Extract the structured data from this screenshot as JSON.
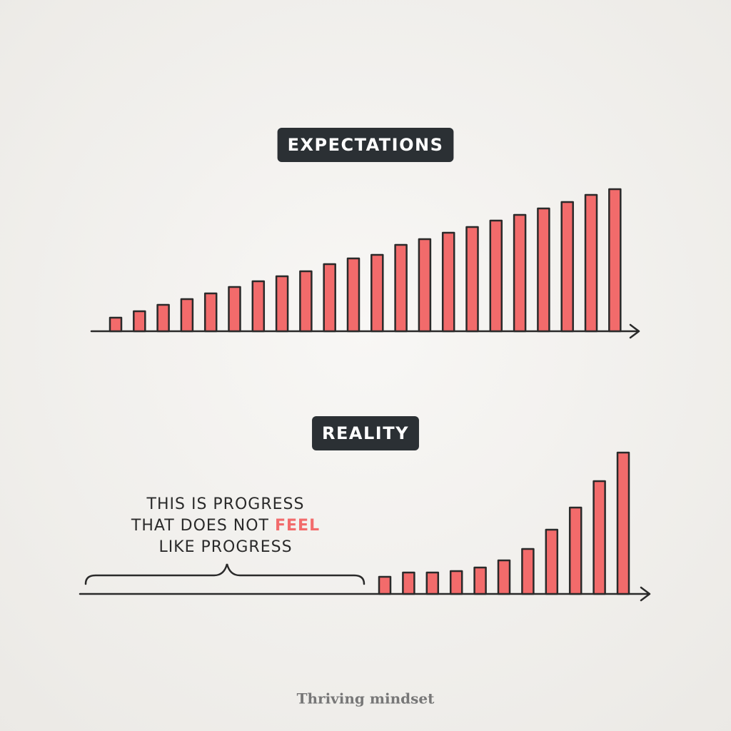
{
  "chart_data": [
    {
      "type": "bar",
      "title": "EXPECTATIONS",
      "color": "#f26b6b",
      "ylim": [
        0,
        200
      ],
      "values": [
        19,
        28,
        37,
        45,
        53,
        62,
        70,
        77,
        84,
        94,
        102,
        107,
        121,
        129,
        138,
        146,
        155,
        163,
        172,
        181,
        191,
        199
      ]
    },
    {
      "type": "bar",
      "title": "REALITY",
      "color": "#f26b6b",
      "ylim": [
        0,
        200
      ],
      "values": [
        24,
        30,
        30,
        32,
        37,
        47,
        63,
        90,
        121,
        158,
        198
      ],
      "annotation": [
        [
          "THIS IS PROGRESS"
        ],
        [
          "THAT DOES NOT ",
          "FEEL"
        ],
        [
          "LIKE PROGRESS"
        ]
      ]
    }
  ],
  "credit": "Thriving mindset"
}
